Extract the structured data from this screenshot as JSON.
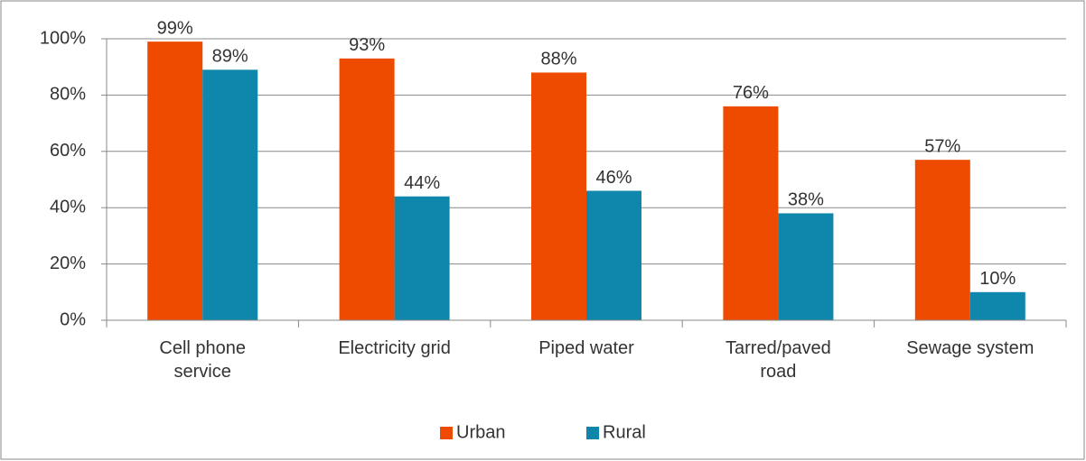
{
  "chart_data": {
    "type": "bar",
    "categories": [
      "Cell phone service",
      "Electricity grid",
      "Piped water",
      "Tarred/paved road",
      "Sewage system"
    ],
    "series": [
      {
        "name": "Urban",
        "color": "#ee4b00",
        "values": [
          99,
          93,
          88,
          76,
          57
        ],
        "value_labels": [
          "99%",
          "93%",
          "88%",
          "76%",
          "57%"
        ]
      },
      {
        "name": "Rural",
        "color": "#0f86ab",
        "values": [
          89,
          44,
          46,
          38,
          10
        ],
        "value_labels": [
          "89%",
          "44%",
          "46%",
          "38%",
          "10%"
        ]
      }
    ],
    "ylim": [
      0,
      100
    ],
    "yticks": [
      {
        "value": 0,
        "label": "0%"
      },
      {
        "value": 20,
        "label": "20%"
      },
      {
        "value": 40,
        "label": "40%"
      },
      {
        "value": 60,
        "label": "60%"
      },
      {
        "value": 80,
        "label": "80%"
      },
      {
        "value": 100,
        "label": "100%"
      }
    ],
    "grid": true,
    "legend": "bottom"
  }
}
